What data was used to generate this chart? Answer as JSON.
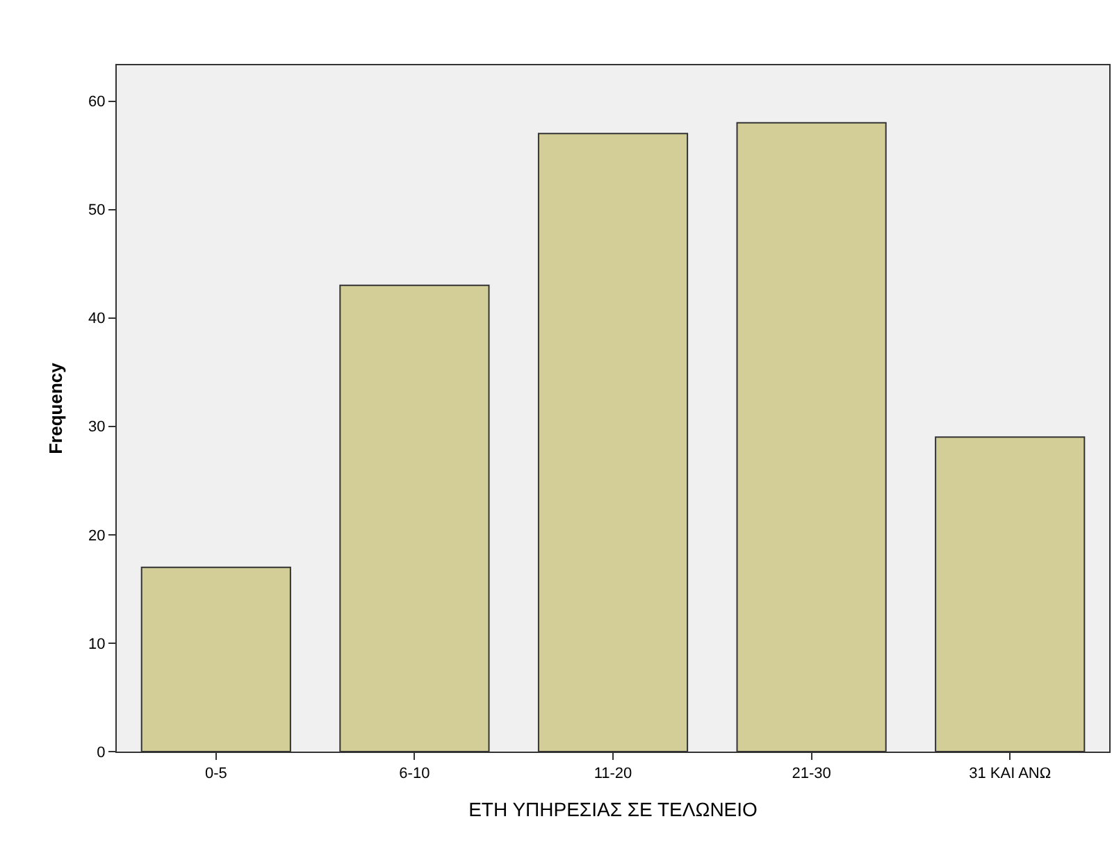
{
  "chart_data": {
    "type": "bar",
    "xlabel": "ΕΤΗ ΥΠΗΡΕΣΙΑΣ ΣΕ ΤΕΛΩΝΕΙΟ",
    "ylabel": "Frequency",
    "categories": [
      "0-5",
      "6-10",
      "11-20",
      "21-30",
      "31 ΚΑΙ ΑΝΩ"
    ],
    "values": [
      17,
      43,
      57,
      58,
      29
    ],
    "color": "#d3ce97",
    "ylim": [
      0,
      63.3
    ],
    "yticks": [
      0,
      10,
      20,
      30,
      40,
      50,
      60
    ],
    "grid": false,
    "legend": false
  }
}
